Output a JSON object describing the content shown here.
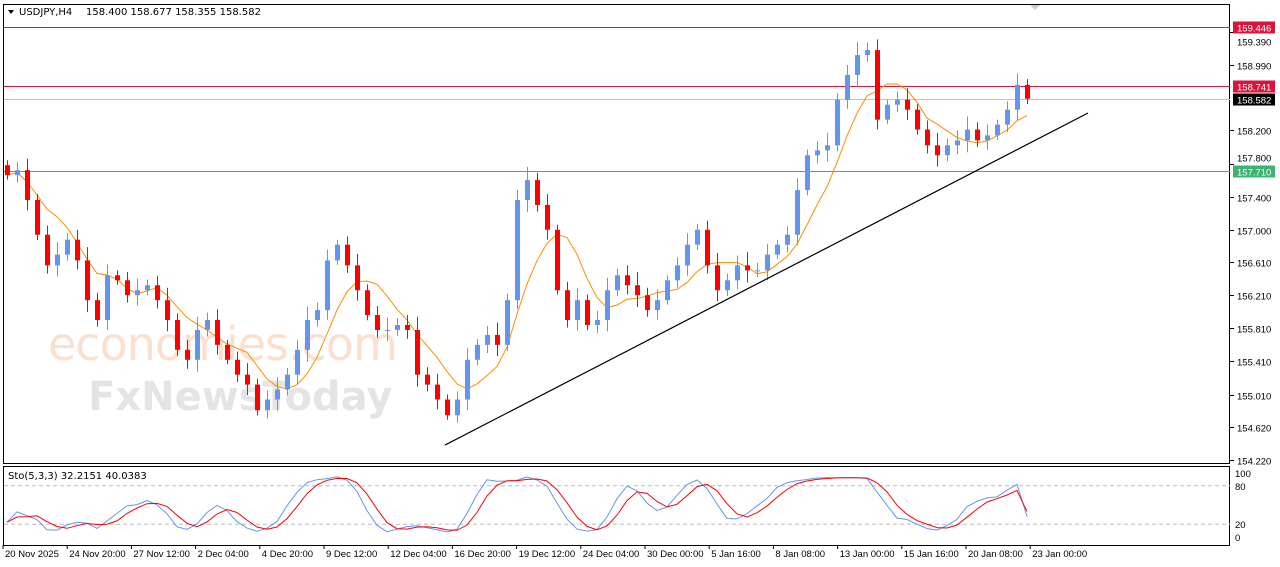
{
  "header": {
    "symbol": "USDJPY,H4",
    "ohlc": "158.400 158.677 158.355 158.582",
    "menu_icon": "triangle-down-icon"
  },
  "watermark": {
    "line1": "economies.com",
    "line2": "FxNewsToday"
  },
  "colors": {
    "bull": "#6495ed",
    "bear": "#ff0000",
    "ma": "#ff8c00",
    "resistance": "#dc143c",
    "support": "#3cb371",
    "current": "#c0c0c0",
    "trendline": "#000000",
    "stoch_main": "#6495ed",
    "stoch_signal": "#ff0000"
  },
  "chart_data": {
    "type": "candlestick",
    "symbol": "USDJPY",
    "timeframe": "H4",
    "ylim": [
      154.22,
      159.446
    ],
    "price_ticks": [
      "159.390",
      "158.990",
      "158.200",
      "157.800",
      "157.400",
      "157.000",
      "156.610",
      "156.210",
      "155.810",
      "155.410",
      "155.010",
      "154.620",
      "154.220"
    ],
    "time_ticks": [
      "20 Nov 2025",
      "24 Nov 20:00",
      "27 Nov 12:00",
      "2 Dec 04:00",
      "4 Dec 20:00",
      "9 Dec 12:00",
      "12 Dec 04:00",
      "16 Dec 20:00",
      "19 Dec 12:00",
      "24 Dec 04:00",
      "30 Dec 00:00",
      "5 Jan 16:00",
      "8 Jan 08:00",
      "13 Jan 00:00",
      "15 Jan 16:00",
      "20 Jan 08:00",
      "23 Jan 00:00"
    ],
    "closes": [
      157.66,
      157.72,
      157.36,
      156.94,
      156.57,
      156.7,
      156.88,
      156.63,
      156.15,
      155.91,
      156.45,
      156.39,
      156.21,
      156.27,
      156.33,
      156.15,
      155.91,
      155.55,
      155.43,
      155.79,
      155.91,
      155.61,
      155.43,
      155.25,
      155.13,
      154.82,
      154.95,
      155.07,
      155.25,
      155.55,
      155.91,
      156.03,
      156.63,
      156.82,
      156.57,
      156.27,
      155.97,
      155.79,
      155.79,
      155.85,
      155.79,
      155.25,
      155.13,
      154.95,
      154.76,
      154.95,
      155.43,
      155.61,
      155.73,
      155.61,
      156.15,
      157.36,
      157.6,
      157.3,
      157.0,
      156.27,
      155.91,
      156.15,
      155.85,
      155.91,
      156.27,
      156.45,
      156.33,
      156.21,
      156.03,
      156.15,
      156.39,
      156.57,
      156.82,
      157.0,
      156.57,
      156.27,
      156.39,
      156.57,
      156.51,
      156.51,
      156.7,
      156.82,
      156.94,
      157.48,
      157.9,
      157.96,
      158.02,
      158.57,
      158.87,
      159.11,
      159.17,
      158.33,
      158.51,
      158.57,
      158.45,
      158.21,
      158.02,
      157.9,
      158.02,
      158.08,
      158.21,
      158.08,
      158.14,
      158.27,
      158.45,
      158.75,
      158.582
    ],
    "horizontal_levels": [
      {
        "price": "159.446",
        "kind": "resistance"
      },
      {
        "price": "158.741",
        "kind": "resistance"
      },
      {
        "price": "158.582",
        "kind": "current"
      },
      {
        "price": "157.710",
        "kind": "support"
      }
    ],
    "trendline": {
      "from_price": 154.4,
      "to_price": 158.41
    },
    "moving_average": {
      "color": "orange"
    },
    "stochastic": {
      "label": "Sto(5,3,3) 32.2151 40.0383",
      "main": 32.2151,
      "signal": 40.0383,
      "levels": [
        20,
        80
      ],
      "ticks": [
        "100",
        "80",
        "20",
        "0"
      ],
      "ylim": [
        0,
        100
      ]
    }
  }
}
